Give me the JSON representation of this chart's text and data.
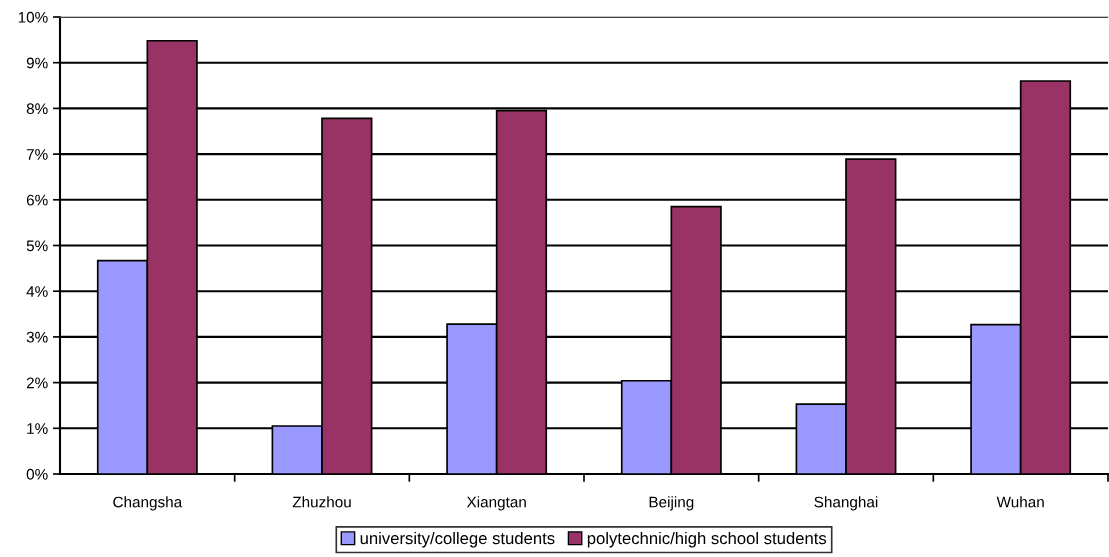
{
  "chart_data": {
    "type": "bar",
    "categories": [
      "Changsha",
      "Zhuzhou",
      "Xiangtan",
      "Beijing",
      "Shanghai",
      "Wuhan"
    ],
    "series": [
      {
        "name": "university/college students",
        "color": "#9999ff",
        "values": [
          4.67,
          1.05,
          3.28,
          2.04,
          1.53,
          3.27
        ]
      },
      {
        "name": "polytechnic/high school students",
        "color": "#993366",
        "values": [
          9.48,
          7.78,
          7.95,
          5.85,
          6.89,
          8.6
        ]
      }
    ],
    "ylim": [
      0,
      10
    ],
    "yticks": [
      {
        "value": 0,
        "label": "0%"
      },
      {
        "value": 1,
        "label": "1%"
      },
      {
        "value": 2,
        "label": "2%"
      },
      {
        "value": 3,
        "label": "3%"
      },
      {
        "value": 4,
        "label": "4%"
      },
      {
        "value": 5,
        "label": "5%"
      },
      {
        "value": 6,
        "label": "6%"
      },
      {
        "value": 7,
        "label": "7%"
      },
      {
        "value": 8,
        "label": "8%"
      },
      {
        "value": 9,
        "label": "9%"
      },
      {
        "value": 10,
        "label": "10%"
      }
    ],
    "grid": "y",
    "legend": "bottom"
  }
}
